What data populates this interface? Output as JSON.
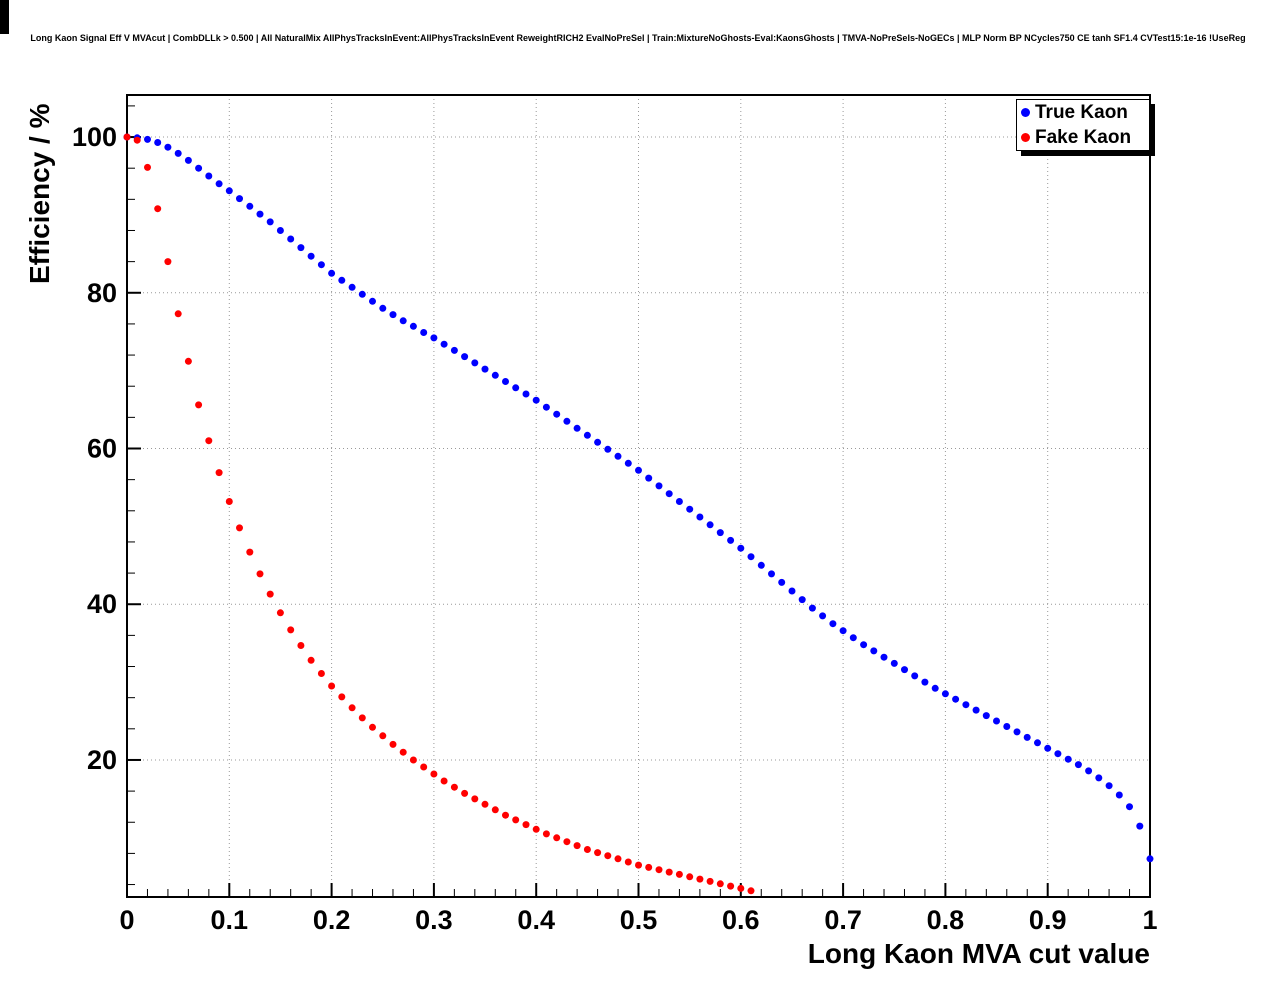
{
  "canvas": {
    "title": "Long Kaon Signal Eff V MVAcut | CombDLLk > 0.500 | All NaturalMix AllPhysTracksInEvent:AllPhysTracksInEvent ReweightRICH2 EvalNoPreSel | Train:MixtureNoGhosts-Eval:KaonsGhosts | TMVA-NoPreSels-NoGECs | MLP Norm BP NCycles750 CE tanh SF1.4 CVTest15:1e-16 !UseReg"
  },
  "chart_data": {
    "type": "scatter",
    "title": "Long Kaon Signal Eff V MVAcut | CombDLLk > 0.500 | All NaturalMix AllPhysTracksInEvent:AllPhysTracksInEvent ReweightRICH2 EvalNoPreSel | Train:MixtureNoGhosts-Eval:KaonsGhosts | TMVA-NoPreSels-NoGECs | MLP Norm BP NCycles750 CE tanh SF1.4 CVTest15:1e-16 !UseReg",
    "xlabel": "Long Kaon MVA cut value",
    "ylabel": "Efficiency / %",
    "xlim": [
      0,
      1
    ],
    "ylim": [
      2.4,
      105.4
    ],
    "grid": true,
    "grid_color": "#999999",
    "x_ticks": [
      0,
      0.1,
      0.2,
      0.3,
      0.4,
      0.5,
      0.6,
      0.7,
      0.8,
      0.9,
      1
    ],
    "x_tick_labels": [
      "0",
      "0.1",
      "0.2",
      "0.3",
      "0.4",
      "0.5",
      "0.6",
      "0.7",
      "0.8",
      "0.9",
      "1"
    ],
    "x_minor_step": 0.02,
    "y_ticks": [
      20,
      40,
      60,
      80,
      100
    ],
    "y_tick_labels": [
      "20",
      "40",
      "60",
      "80",
      "100"
    ],
    "y_minor_step": 4,
    "legend": {
      "position": "top-right",
      "entries": [
        {
          "label": "True Kaon",
          "color": "#0000ff"
        },
        {
          "label": "Fake Kaon",
          "color": "#ff0000"
        }
      ]
    },
    "series": [
      {
        "name": "True Kaon",
        "key": "true-kaon",
        "color": "#0000ff",
        "marker": "circle",
        "x": [
          0,
          0.01,
          0.02,
          0.03,
          0.04,
          0.05,
          0.06,
          0.07,
          0.08,
          0.09,
          0.1,
          0.11,
          0.12,
          0.13,
          0.14,
          0.15,
          0.16,
          0.17,
          0.18,
          0.19,
          0.2,
          0.21,
          0.22,
          0.23,
          0.24,
          0.25,
          0.26,
          0.27,
          0.28,
          0.29,
          0.3,
          0.31,
          0.32,
          0.33,
          0.34,
          0.35,
          0.36,
          0.37,
          0.38,
          0.39,
          0.4,
          0.41,
          0.42,
          0.43,
          0.44,
          0.45,
          0.46,
          0.47,
          0.48,
          0.49,
          0.5,
          0.51,
          0.52,
          0.53,
          0.54,
          0.55,
          0.56,
          0.57,
          0.58,
          0.59,
          0.6,
          0.61,
          0.62,
          0.63,
          0.64,
          0.65,
          0.66,
          0.67,
          0.68,
          0.69,
          0.7,
          0.71,
          0.72,
          0.73,
          0.74,
          0.75,
          0.76,
          0.77,
          0.78,
          0.79,
          0.8,
          0.81,
          0.82,
          0.83,
          0.84,
          0.85,
          0.86,
          0.87,
          0.88,
          0.89,
          0.9,
          0.91,
          0.92,
          0.93,
          0.94,
          0.95,
          0.96,
          0.97,
          0.98,
          0.99,
          1
        ],
        "y": [
          100,
          99.9,
          99.7,
          99.3,
          98.7,
          97.9,
          97,
          96,
          95,
          94,
          93.1,
          92.1,
          91.1,
          90.1,
          89.1,
          88,
          86.9,
          85.8,
          84.7,
          83.6,
          82.5,
          81.6,
          80.7,
          79.8,
          78.9,
          78,
          77.2,
          76.4,
          75.7,
          74.9,
          74.2,
          73.4,
          72.6,
          71.8,
          71,
          70.2,
          69.4,
          68.6,
          67.8,
          67,
          66.2,
          65.3,
          64.4,
          63.5,
          62.6,
          61.7,
          60.8,
          59.9,
          59,
          58.1,
          57.2,
          56.2,
          55.2,
          54.2,
          53.2,
          52.2,
          51.2,
          50.2,
          49.2,
          48.2,
          47.2,
          46.1,
          45,
          43.9,
          42.8,
          41.7,
          40.6,
          39.5,
          38.5,
          37.5,
          36.6,
          35.7,
          34.8,
          34,
          33.2,
          32.4,
          31.6,
          30.8,
          30,
          29.2,
          28.5,
          27.8,
          27.1,
          26.4,
          25.7,
          25,
          24.3,
          23.6,
          22.9,
          22.2,
          21.5,
          20.8,
          20.1,
          19.4,
          18.6,
          17.7,
          16.7,
          15.5,
          14,
          11.5,
          7.3
        ]
      },
      {
        "name": "Fake Kaon",
        "key": "fake-kaon",
        "color": "#ff0000",
        "marker": "circle",
        "x": [
          0,
          0.01,
          0.02,
          0.03,
          0.04,
          0.05,
          0.06,
          0.07,
          0.08,
          0.09,
          0.1,
          0.11,
          0.12,
          0.13,
          0.14,
          0.15,
          0.16,
          0.17,
          0.18,
          0.19,
          0.2,
          0.21,
          0.22,
          0.23,
          0.24,
          0.25,
          0.26,
          0.27,
          0.28,
          0.29,
          0.3,
          0.31,
          0.32,
          0.33,
          0.34,
          0.35,
          0.36,
          0.37,
          0.38,
          0.39,
          0.4,
          0.41,
          0.42,
          0.43,
          0.44,
          0.45,
          0.46,
          0.47,
          0.48,
          0.49,
          0.5,
          0.51,
          0.52,
          0.53,
          0.54,
          0.55,
          0.56,
          0.57,
          0.58,
          0.59,
          0.6,
          0.61
        ],
        "y": [
          100,
          99.6,
          96.1,
          90.8,
          84,
          77.3,
          71.2,
          65.6,
          61,
          56.9,
          53.2,
          49.8,
          46.7,
          43.9,
          41.3,
          38.9,
          36.7,
          34.7,
          32.8,
          31.1,
          29.5,
          28.1,
          26.7,
          25.4,
          24.2,
          23.1,
          22,
          21,
          20,
          19.1,
          18.2,
          17.3,
          16.5,
          15.7,
          15,
          14.3,
          13.6,
          12.9,
          12.3,
          11.7,
          11.1,
          10.5,
          10,
          9.5,
          9,
          8.5,
          8.1,
          7.7,
          7.3,
          6.9,
          6.5,
          6.2,
          5.9,
          5.6,
          5.3,
          5,
          4.7,
          4.4,
          4.1,
          3.8,
          3.5,
          3.2
        ]
      }
    ]
  }
}
